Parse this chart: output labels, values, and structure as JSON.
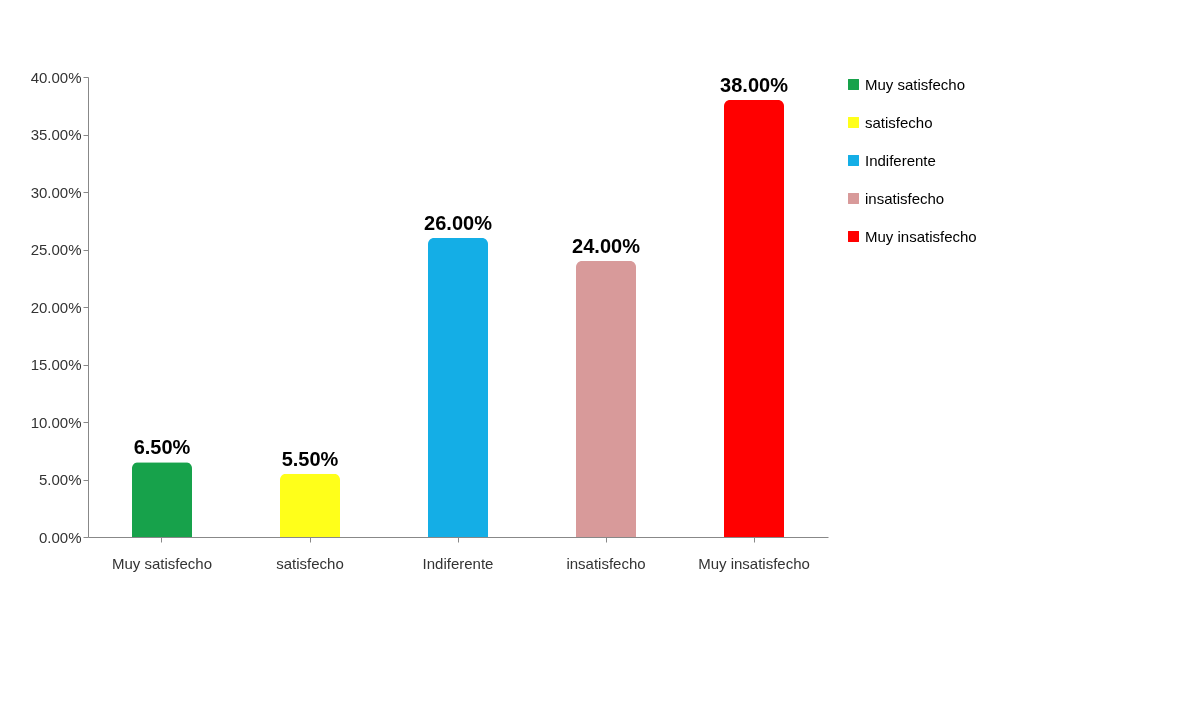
{
  "chart_data": {
    "type": "bar",
    "categories": [
      "Muy satisfecho",
      "satisfecho",
      "Indiferente",
      "insatisfecho",
      "Muy insatisfecho"
    ],
    "series": [
      {
        "name": "Muy satisfecho",
        "color": "#17a24b",
        "values": [
          6.5,
          null,
          null,
          null,
          null
        ],
        "value_labels": [
          "6.50%",
          null,
          null,
          null,
          null
        ]
      },
      {
        "name": "satisfecho",
        "color": "#ffff1a",
        "values": [
          null,
          5.5,
          null,
          null,
          null
        ],
        "value_labels": [
          null,
          "5.50%",
          null,
          null,
          null
        ]
      },
      {
        "name": "Indiferente",
        "color": "#14aee6",
        "values": [
          null,
          null,
          26,
          null,
          null
        ],
        "value_labels": [
          null,
          null,
          "26.00%",
          null,
          null
        ]
      },
      {
        "name": "insatisfecho",
        "color": "#d89a9a",
        "values": [
          null,
          null,
          null,
          24,
          null
        ],
        "value_labels": [
          null,
          null,
          null,
          "24.00%",
          null
        ]
      },
      {
        "name": "Muy insatisfecho",
        "color": "#ff0000",
        "values": [
          null,
          null,
          null,
          null,
          38
        ],
        "value_labels": [
          null,
          null,
          null,
          null,
          "38.00%"
        ]
      }
    ],
    "ylim": [
      0,
      40
    ],
    "yticks": [
      {
        "value": 0,
        "label": "0.00%"
      },
      {
        "value": 5,
        "label": "5.00%"
      },
      {
        "value": 10,
        "label": "10.00%"
      },
      {
        "value": 15,
        "label": "15.00%"
      },
      {
        "value": 20,
        "label": "20.00%"
      },
      {
        "value": 25,
        "label": "25.00%"
      },
      {
        "value": 30,
        "label": "30.00%"
      },
      {
        "value": 35,
        "label": "35.00%"
      },
      {
        "value": 40,
        "label": "40.00%"
      }
    ],
    "legend": "right",
    "grid": false
  }
}
